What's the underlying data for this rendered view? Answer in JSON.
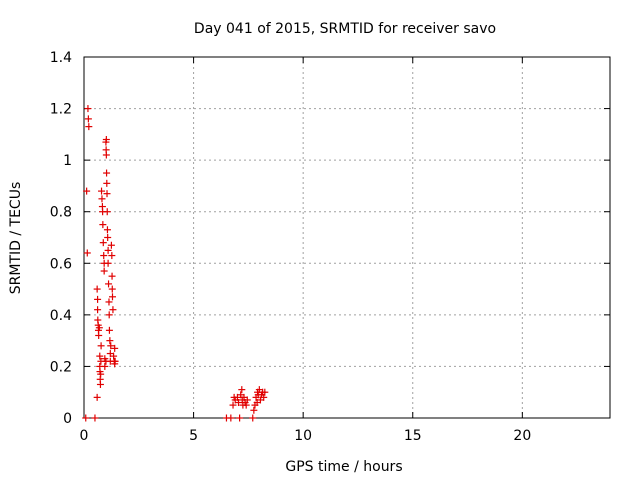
{
  "chart_data": {
    "type": "scatter",
    "title": "Day 041 of 2015, SRMTID for receiver savo",
    "xlabel": "GPS time / hours",
    "ylabel": "SRMTID / TECUs",
    "xlim": [
      0,
      24
    ],
    "ylim": [
      0,
      1.4
    ],
    "xticks": [
      0,
      5,
      10,
      15,
      20
    ],
    "xtick_labels": [
      "0",
      "5",
      "10",
      "15",
      "20"
    ],
    "yticks": [
      0,
      0.2,
      0.4,
      0.6,
      0.8,
      1.0,
      1.2,
      1.4
    ],
    "ytick_labels": [
      "0",
      "0.2",
      "0.4",
      "0.6",
      "0.8",
      "1",
      "1.2",
      "1.4"
    ],
    "grid": true,
    "marker": "+",
    "color": "#e00000",
    "series": [
      {
        "name": "",
        "points": [
          [
            0.08,
            0.0
          ],
          [
            0.12,
            0.88
          ],
          [
            0.15,
            0.64
          ],
          [
            0.18,
            1.2
          ],
          [
            0.2,
            1.16
          ],
          [
            0.22,
            1.13
          ],
          [
            0.5,
            0.0
          ],
          [
            0.6,
            0.08
          ],
          [
            0.6,
            0.5
          ],
          [
            0.62,
            0.46
          ],
          [
            0.62,
            0.42
          ],
          [
            0.63,
            0.38
          ],
          [
            0.65,
            0.36
          ],
          [
            0.66,
            0.34
          ],
          [
            0.67,
            0.32
          ],
          [
            0.7,
            0.35
          ],
          [
            0.72,
            0.24
          ],
          [
            0.72,
            0.2
          ],
          [
            0.73,
            0.18
          ],
          [
            0.74,
            0.15
          ],
          [
            0.75,
            0.13
          ],
          [
            0.76,
            0.17
          ],
          [
            0.77,
            0.22
          ],
          [
            0.78,
            0.28
          ],
          [
            0.8,
            0.88
          ],
          [
            0.82,
            0.85
          ],
          [
            0.84,
            0.82
          ],
          [
            0.85,
            0.8
          ],
          [
            0.86,
            0.75
          ],
          [
            0.88,
            0.68
          ],
          [
            0.9,
            0.63
          ],
          [
            0.92,
            0.57
          ],
          [
            0.92,
            0.6
          ],
          [
            0.95,
            0.23
          ],
          [
            0.95,
            0.2
          ],
          [
            1.0,
            0.22
          ],
          [
            1.0,
            1.07
          ],
          [
            1.01,
            1.04
          ],
          [
            1.02,
            1.02
          ],
          [
            1.02,
            1.08
          ],
          [
            1.03,
            0.95
          ],
          [
            1.04,
            0.91
          ],
          [
            1.05,
            0.87
          ],
          [
            1.06,
            0.8
          ],
          [
            1.07,
            0.73
          ],
          [
            1.08,
            0.7
          ],
          [
            1.1,
            0.65
          ],
          [
            1.1,
            0.6
          ],
          [
            1.12,
            0.52
          ],
          [
            1.14,
            0.45
          ],
          [
            1.15,
            0.4
          ],
          [
            1.16,
            0.34
          ],
          [
            1.18,
            0.3
          ],
          [
            1.2,
            0.25
          ],
          [
            1.2,
            0.22
          ],
          [
            1.22,
            0.28
          ],
          [
            1.25,
            0.67
          ],
          [
            1.27,
            0.63
          ],
          [
            1.28,
            0.55
          ],
          [
            1.29,
            0.5
          ],
          [
            1.3,
            0.47
          ],
          [
            1.32,
            0.42
          ],
          [
            1.35,
            0.24
          ],
          [
            1.38,
            0.22
          ],
          [
            1.4,
            0.21
          ],
          [
            1.4,
            0.27
          ],
          [
            1.42,
            0.22
          ],
          [
            6.5,
            0.0
          ],
          [
            6.7,
            0.0
          ],
          [
            6.8,
            0.05
          ],
          [
            6.85,
            0.08
          ],
          [
            6.9,
            0.07
          ],
          [
            7.0,
            0.08
          ],
          [
            7.05,
            0.06
          ],
          [
            7.1,
            0.0
          ],
          [
            7.15,
            0.09
          ],
          [
            7.2,
            0.11
          ],
          [
            7.22,
            0.07
          ],
          [
            7.25,
            0.05
          ],
          [
            7.3,
            0.08
          ],
          [
            7.35,
            0.06
          ],
          [
            7.4,
            0.05
          ],
          [
            7.45,
            0.07
          ],
          [
            7.7,
            0.0
          ],
          [
            7.75,
            0.03
          ],
          [
            7.8,
            0.05
          ],
          [
            7.85,
            0.08
          ],
          [
            7.9,
            0.06
          ],
          [
            7.92,
            0.1
          ],
          [
            7.95,
            0.09
          ],
          [
            8.0,
            0.11
          ],
          [
            8.05,
            0.07
          ],
          [
            8.1,
            0.09
          ],
          [
            8.15,
            0.1
          ],
          [
            8.2,
            0.08
          ],
          [
            8.25,
            0.1
          ]
        ]
      }
    ]
  }
}
